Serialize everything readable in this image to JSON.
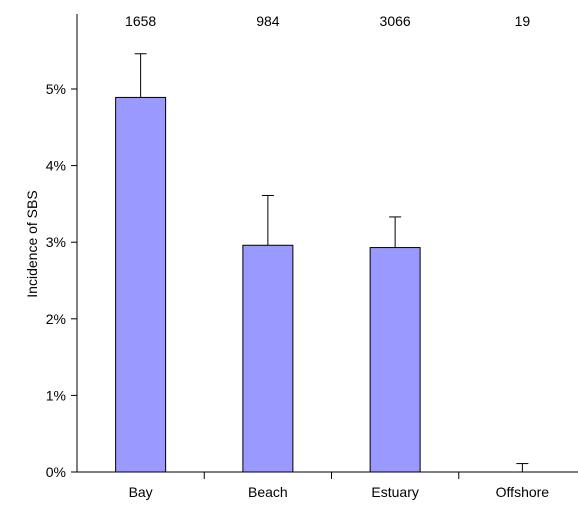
{
  "chart_data": {
    "type": "bar",
    "categories": [
      "Bay",
      "Beach",
      "Estuary",
      "Offshore"
    ],
    "values": [
      4.89,
      2.96,
      2.93,
      0.0
    ],
    "error_upper": [
      5.46,
      3.61,
      3.33,
      0.11
    ],
    "sample_sizes": [
      "1658",
      "984",
      "3066",
      "19"
    ],
    "title": "",
    "xlabel": "",
    "ylabel": "Incidence of SBS",
    "ylim": [
      0,
      6
    ],
    "yticks": [
      0,
      1,
      2,
      3,
      4,
      5
    ],
    "ytick_labels": [
      "0%",
      "1%",
      "2%",
      "3%",
      "4%",
      "5%"
    ],
    "grid": false,
    "legend": "none",
    "colors": {
      "bar_fill": "#9999FF",
      "bar_stroke": "#000000",
      "axis": "#000000"
    }
  }
}
